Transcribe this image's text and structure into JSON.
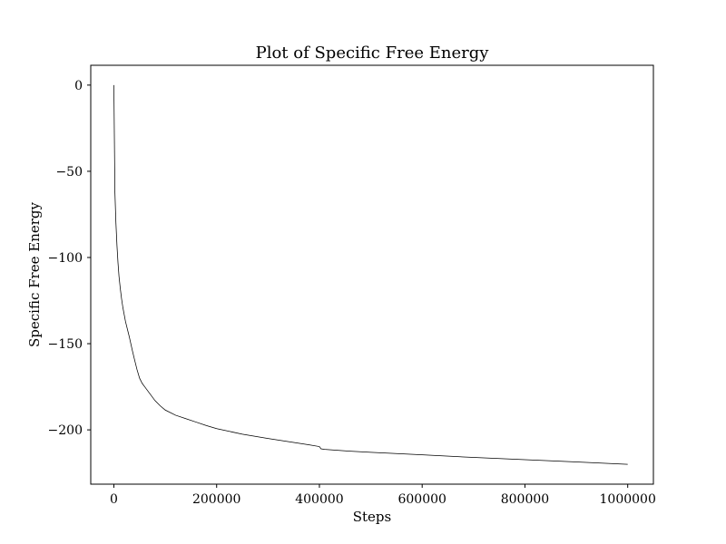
{
  "chart_data": {
    "type": "line",
    "title": "Plot of Specific Free Energy",
    "xlabel": "Steps",
    "ylabel": "Specific Free Energy",
    "xlim": [
      -45000,
      1050000
    ],
    "ylim": [
      -231.5,
      11.5
    ],
    "grid": false,
    "legend": "none",
    "line_color": "#000000",
    "x_ticks": [
      0,
      200000,
      400000,
      600000,
      800000,
      1000000
    ],
    "x_tick_labels": [
      "0",
      "200000",
      "400000",
      "600000",
      "800000",
      "1000000"
    ],
    "y_ticks": [
      0,
      -50,
      -100,
      -150,
      -200
    ],
    "y_tick_labels": [
      "0",
      "−50",
      "−100",
      "−150",
      "−200"
    ],
    "series": [
      {
        "x": [
          0,
          2000,
          4000,
          6000,
          8000,
          10000,
          12500,
          15000,
          17500,
          20000,
          22500,
          25000,
          27500,
          30000,
          33000,
          36000,
          40000,
          45000,
          50000,
          55000,
          60000,
          70000,
          80000,
          90000,
          100000,
          120000,
          140000,
          160000,
          180000,
          200000,
          250000,
          300000,
          350000,
          380000,
          400000,
          403000,
          410000,
          450000,
          500000,
          600000,
          700000,
          800000,
          900000,
          1000000
        ],
        "y": [
          0,
          -62,
          -80,
          -93,
          -103,
          -111,
          -118,
          -124,
          -129,
          -133,
          -137,
          -140,
          -143,
          -146,
          -150,
          -154,
          -159,
          -165,
          -170,
          -173,
          -175,
          -179,
          -183,
          -186,
          -188.5,
          -191.5,
          -193.5,
          -195.5,
          -197.5,
          -199.3,
          -202.5,
          -205,
          -207.3,
          -208.7,
          -209.7,
          -211,
          -211.3,
          -212.2,
          -213,
          -214.5,
          -216,
          -217.3,
          -218.6,
          -220
        ]
      }
    ]
  }
}
